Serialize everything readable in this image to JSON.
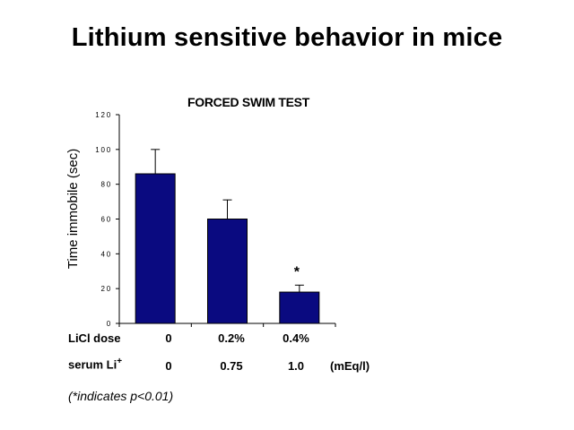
{
  "slide": {
    "title": "Lithium sensitive behavior in mice"
  },
  "chart_data": {
    "type": "bar",
    "title": "FORCED SWIM TEST",
    "xlabel": "",
    "ylabel": "Time immobile (sec)",
    "ylim": [
      0,
      120
    ],
    "yticks": [
      "0",
      "20",
      "40",
      "60",
      "80",
      "100",
      "120"
    ],
    "categories": [
      "0",
      "0.2%",
      "0.4%"
    ],
    "values": [
      86,
      60,
      18
    ],
    "error_upper": [
      100,
      71,
      22
    ],
    "annotations": [
      {
        "category_index": 2,
        "text": "*"
      }
    ],
    "bar_color": "#0a0a80",
    "grid": false,
    "legend": "none"
  },
  "table": {
    "licl_label": "LiCl dose",
    "licl_values": [
      "0",
      "0.2%",
      "0.4%"
    ],
    "serum_label": "serum Li",
    "serum_sup": "+",
    "serum_values": [
      "0",
      "0.75",
      "1.0"
    ],
    "serum_unit": "(mEq/l)"
  },
  "footnote": "(*indicates p<0.01)"
}
